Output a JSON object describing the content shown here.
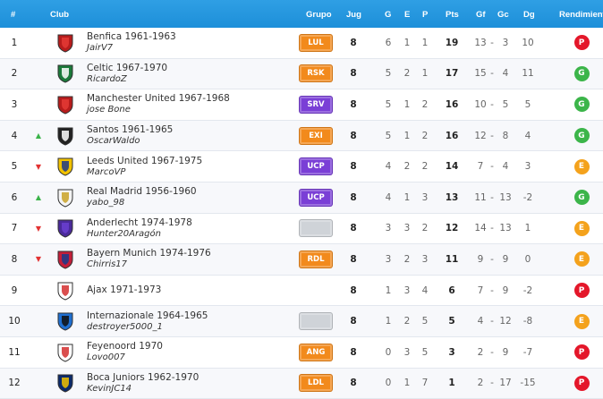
{
  "headers": {
    "rank": "#",
    "club": "Club",
    "grupo": "Grupo",
    "jug": "Jug",
    "g": "G",
    "e": "E",
    "p": "P",
    "pts": "Pts",
    "gf": "Gf",
    "sep": "-",
    "gc": "Gc",
    "dg": "Dg",
    "rend": "Rendimiento"
  },
  "colors": {
    "header": "#1f93dc",
    "P": "#e4172a",
    "G": "#3cb54a",
    "E": "#f4a21c"
  },
  "rows": [
    {
      "rank": "1",
      "trend": "",
      "club": "Benfica 1961-1963",
      "manager": "JairV7",
      "crest": "red",
      "group": "LUL",
      "group_color": "orange",
      "jug": "8",
      "g": "6",
      "e": "1",
      "p": "1",
      "pts": "19",
      "gf": "13",
      "sep": "-",
      "gc": "3",
      "dg": "10",
      "rend": "P"
    },
    {
      "rank": "2",
      "trend": "",
      "club": "Celtic 1967-1970",
      "manager": "RicardoZ",
      "crest": "green",
      "group": "RSK",
      "group_color": "orange",
      "jug": "8",
      "g": "5",
      "e": "2",
      "p": "1",
      "pts": "17",
      "gf": "15",
      "sep": "-",
      "gc": "4",
      "dg": "11",
      "rend": "G"
    },
    {
      "rank": "3",
      "trend": "",
      "club": "Manchester United 1967-1968",
      "manager": "jose Bone",
      "crest": "red",
      "group": "SRV",
      "group_color": "purple",
      "jug": "8",
      "g": "5",
      "e": "1",
      "p": "2",
      "pts": "16",
      "gf": "10",
      "sep": "-",
      "gc": "5",
      "dg": "5",
      "rend": "G"
    },
    {
      "rank": "4",
      "trend": "up",
      "club": "Santos 1961-1965",
      "manager": "OscarWaldo",
      "crest": "blackwhite",
      "group": "EXI",
      "group_color": "orange",
      "jug": "8",
      "g": "5",
      "e": "1",
      "p": "2",
      "pts": "16",
      "gf": "12",
      "sep": "-",
      "gc": "8",
      "dg": "4",
      "rend": "G"
    },
    {
      "rank": "5",
      "trend": "down",
      "club": "Leeds United 1967-1975",
      "manager": "MarcoVP",
      "crest": "yellowblue",
      "group": "UCP",
      "group_color": "purple",
      "jug": "8",
      "g": "4",
      "e": "2",
      "p": "2",
      "pts": "14",
      "gf": "7",
      "sep": "-",
      "gc": "4",
      "dg": "3",
      "rend": "E"
    },
    {
      "rank": "6",
      "trend": "up",
      "club": "Real Madrid 1956-1960",
      "manager": "yabo_98",
      "crest": "white",
      "group": "UCP",
      "group_color": "purple",
      "jug": "8",
      "g": "4",
      "e": "1",
      "p": "3",
      "pts": "13",
      "gf": "11",
      "sep": "-",
      "gc": "13",
      "dg": "-2",
      "rend": "G"
    },
    {
      "rank": "7",
      "trend": "down",
      "club": "Anderlecht 1974-1978",
      "manager": "Hunter20Aragón",
      "crest": "purple",
      "group": "",
      "group_color": "gray",
      "jug": "8",
      "g": "3",
      "e": "3",
      "p": "2",
      "pts": "12",
      "gf": "14",
      "sep": "-",
      "gc": "13",
      "dg": "1",
      "rend": "E"
    },
    {
      "rank": "8",
      "trend": "down",
      "club": "Bayern Munich 1974-1976",
      "manager": "Chirris17",
      "crest": "redblue",
      "group": "RDL",
      "group_color": "orange",
      "jug": "8",
      "g": "3",
      "e": "2",
      "p": "3",
      "pts": "11",
      "gf": "9",
      "sep": "-",
      "gc": "9",
      "dg": "0",
      "rend": "E"
    },
    {
      "rank": "9",
      "trend": "",
      "club": "Ajax 1971-1973",
      "manager": "",
      "crest": "redwhite",
      "group": "",
      "group_color": "none",
      "jug": "8",
      "g": "1",
      "e": "3",
      "p": "4",
      "pts": "6",
      "gf": "7",
      "sep": "-",
      "gc": "9",
      "dg": "-2",
      "rend": "P"
    },
    {
      "rank": "10",
      "trend": "",
      "club": "Internazionale 1964-1965",
      "manager": "destroyer5000_1",
      "crest": "blueblack",
      "group": "",
      "group_color": "gray",
      "jug": "8",
      "g": "1",
      "e": "2",
      "p": "5",
      "pts": "5",
      "gf": "4",
      "sep": "-",
      "gc": "12",
      "dg": "-8",
      "rend": "E"
    },
    {
      "rank": "11",
      "trend": "",
      "club": "Feyenoord 1970",
      "manager": "Lovo007",
      "crest": "redwhite",
      "group": "ANG",
      "group_color": "orange",
      "jug": "8",
      "g": "0",
      "e": "3",
      "p": "5",
      "pts": "3",
      "gf": "2",
      "sep": "-",
      "gc": "9",
      "dg": "-7",
      "rend": "P"
    },
    {
      "rank": "12",
      "trend": "",
      "club": "Boca Juniors 1962-1970",
      "manager": "KevinJC14",
      "crest": "blueyellow",
      "group": "LDL",
      "group_color": "orange",
      "jug": "8",
      "g": "0",
      "e": "1",
      "p": "7",
      "pts": "1",
      "gf": "2",
      "sep": "-",
      "gc": "17",
      "dg": "-15",
      "rend": "P"
    }
  ]
}
